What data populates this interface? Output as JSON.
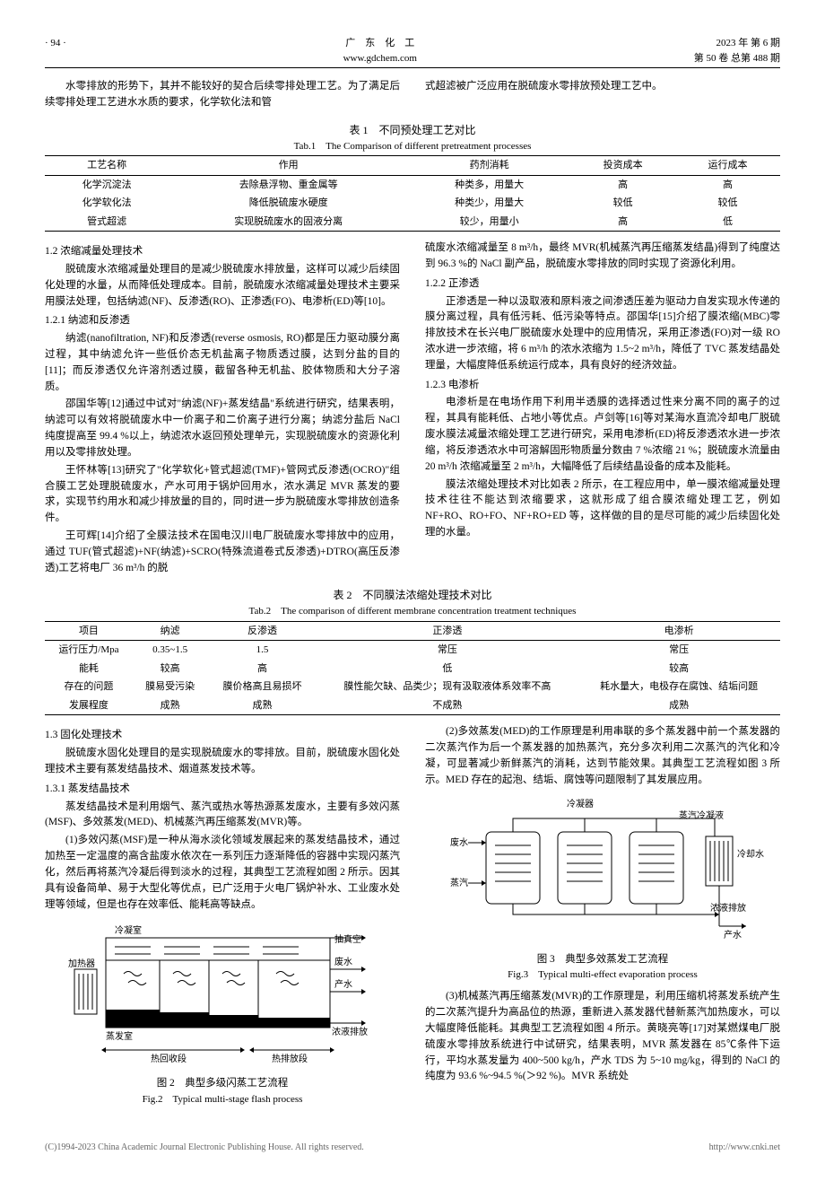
{
  "header": {
    "page_num": "· 94 ·",
    "journal_cn": "广　东　化　工",
    "journal_url": "www.gdchem.com",
    "year_issue": "2023 年 第 6 期",
    "vol_issue": "第 50 卷 总第 488 期"
  },
  "intro": {
    "left": "水零排放的形势下，其并不能较好的契合后续零排处理工艺。为了满足后续零排处理工艺进水水质的要求，化学软化法和管",
    "right": "式超滤被广泛应用在脱硫废水零排放预处理工艺中。"
  },
  "table1": {
    "caption_cn": "表 1　不同预处理工艺对比",
    "caption_en": "Tab.1　The Comparison of different pretreatment processes",
    "headers": [
      "工艺名称",
      "作用",
      "药剂消耗",
      "投资成本",
      "运行成本"
    ],
    "rows": [
      [
        "化学沉淀法",
        "去除悬浮物、重金属等",
        "种类多，用量大",
        "高",
        "高"
      ],
      [
        "化学软化法",
        "降低脱硫废水硬度",
        "种类少，用量大",
        "较低",
        "较低"
      ],
      [
        "管式超滤",
        "实现脱硫废水的固液分离",
        "较少，用量小",
        "高",
        "低"
      ]
    ]
  },
  "section12": {
    "title": "1.2 浓缩减量处理技术",
    "p1": "脱硫废水浓缩减量处理目的是减少脱硫废水排放量，这样可以减少后续固化处理的水量，从而降低处理成本。目前，脱硫废水浓缩减量处理技术主要采用膜法处理，包括纳滤(NF)、反渗透(RO)、正渗透(FO)、电渗析(ED)等[10]。",
    "s121_title": "1.2.1 纳滤和反渗透",
    "s121_p1": "纳滤(nanofiltration, NF)和反渗透(reverse osmosis, RO)都是压力驱动膜分离过程，其中纳滤允许一些低价态无机盐离子物质透过膜，达到分盐的目的[11]；而反渗透仅允许溶剂透过膜，截留各种无机盐、胶体物质和大分子溶质。",
    "s121_p2": "邵国华等[12]通过中试对\"纳滤(NF)+蒸发结晶\"系统进行研究，结果表明，纳滤可以有效将脱硫废水中一价离子和二价离子进行分离；纳滤分盐后 NaCl 纯度提高至 99.4 %以上，纳滤浓水返回预处理单元，实现脱硫废水的资源化利用以及零排放处理。",
    "s121_p3": "王怀林等[13]研究了\"化学软化+管式超滤(TMF)+管网式反渗透(OCRO)\"组合膜工艺处理脱硫废水，产水可用于锅炉回用水，浓水满足 MVR 蒸发的要求，实现节约用水和减少排放量的目的，同时进一步为脱硫废水零排放创造条件。",
    "s121_p4": "王可辉[14]介绍了全膜法技术在国电汉川电厂脱硫废水零排放中的应用，通过 TUF(管式超滤)+NF(纳滤)+SCRO(特殊流道卷式反渗透)+DTRO(高压反渗透)工艺将电厂 36 m³/h 的脱",
    "right_p1": "硫废水浓缩减量至 8 m³/h，最终 MVR(机械蒸汽再压缩蒸发结晶)得到了纯度达到 96.3 %的 NaCl 副产品，脱硫废水零排放的同时实现了资源化利用。",
    "s122_title": "1.2.2 正渗透",
    "s122_p1": "正渗透是一种以汲取液和原料液之间渗透压差为驱动力自发实现水传递的膜分离过程，具有低污耗、低污染等特点。邵国华[15]介绍了膜浓缩(MBC)零排放技术在长兴电厂脱硫废水处理中的应用情况，采用正渗透(FO)对一级 RO 浓水进一步浓缩，将 6 m³/h 的浓水浓缩为 1.5~2 m³/h，降低了 TVC 蒸发结晶处理量，大幅度降低系统运行成本，具有良好的经济效益。",
    "s123_title": "1.2.3 电渗析",
    "s123_p1": "电渗析是在电场作用下利用半透膜的选择透过性来分离不同的离子的过程，其具有能耗低、占地小等优点。卢剑等[16]等对某海水直流冷却电厂脱硫废水膜法减量浓缩处理工艺进行研究，采用电渗析(ED)将反渗透浓水进一步浓缩，将反渗透浓水中可溶解固形物质量分数由 7 %浓缩 21 %；脱硫废水流量由 20 m³/h 浓缩减量至 2 m³/h，大幅降低了后续结晶设备的成本及能耗。",
    "s123_p2": "膜法浓缩处理技术对比如表 2 所示，在工程应用中，单一膜浓缩减量处理技术往往不能达到浓缩要求，这就形成了组合膜浓缩处理工艺，例如 NF+RO、RO+FO、NF+RO+ED 等，这样做的目的是尽可能的减少后续固化处理的水量。"
  },
  "table2": {
    "caption_cn": "表 2　不同膜法浓缩处理技术对比",
    "caption_en": "Tab.2　The comparison of different membrane concentration treatment techniques",
    "headers": [
      "项目",
      "纳滤",
      "反渗透",
      "正渗透",
      "电渗析"
    ],
    "rows": [
      [
        "运行压力/Mpa",
        "0.35~1.5",
        "1.5",
        "常压",
        "常压"
      ],
      [
        "能耗",
        "较高",
        "高",
        "低",
        "较高"
      ],
      [
        "存在的问题",
        "膜易受污染",
        "膜价格高且易损坏",
        "膜性能欠缺、品类少；现有汲取液体系效率不高",
        "耗水量大，电极存在腐蚀、结垢问题"
      ],
      [
        "发展程度",
        "成熟",
        "成熟",
        "不成熟",
        "成熟"
      ]
    ]
  },
  "section13": {
    "title": "1.3 固化处理技术",
    "p1": "脱硫废水固化处理目的是实现脱硫废水的零排放。目前，脱硫废水固化处理技术主要有蒸发结晶技术、烟道蒸发技术等。",
    "s131_title": "1.3.1 蒸发结晶技术",
    "s131_p1": "蒸发结晶技术是利用烟气、蒸汽或热水等热源蒸发废水，主要有多效闪蒸(MSF)、多效蒸发(MED)、机械蒸汽再压缩蒸发(MVR)等。",
    "s131_p2": "(1)多效闪蒸(MSF)是一种从海水淡化领域发展起来的蒸发结晶技术，通过加热至一定温度的高含盐废水依次在一系列压力逐渐降低的容器中实现闪蒸汽化，然后再将蒸汽冷凝后得到淡水的过程，其典型工艺流程如图 2 所示。因其具有设备简单、易于大型化等优点，已广泛用于火电厂锅炉补水、工业废水处理等领域，但是也存在效率低、能耗高等缺点。",
    "right_p1": "(2)多效蒸发(MED)的工作原理是利用串联的多个蒸发器中前一个蒸发器的二次蒸汽作为后一个蒸发器的加热蒸汽，充分多次利用二次蒸汽的汽化和冷凝，可显著减少新鲜蒸汽的消耗，达到节能效果。其典型工艺流程如图 3 所示。MED 存在的起泡、结垢、腐蚀等问题限制了其发展应用。",
    "right_p2": "(3)机械蒸汽再压缩蒸发(MVR)的工作原理是，利用压缩机将蒸发系统产生的二次蒸汽提升为高品位的热源，重新进入蒸发器代替新蒸汽加热废水，可以大幅度降低能耗。其典型工艺流程如图 4 所示。黄晓亮等[17]对某燃煤电厂脱硫废水零排放系统进行中试研究，结果表明，MVR 蒸发器在 85℃条件下运行，平均水蒸发量为 400~500 kg/h，产水 TDS 为 5~10 mg/kg，得到的 NaCl 的纯度为 93.6 %~94.5 %(＞92 %)。MVR 系统处"
  },
  "fig2": {
    "caption_cn": "图 2　典型多级闪蒸工艺流程",
    "caption_en": "Fig.2　Typical multi-stage flash process",
    "labels": {
      "condenser": "冷凝室",
      "vacuum": "抽真空",
      "waste": "废水",
      "heater": "加热器",
      "product": "产水",
      "evap": "蒸发室",
      "brine": "浓液排放",
      "recovery": "热回收段",
      "reject": "热排放段"
    },
    "colors": {
      "line": "#000000",
      "fill": "#000000",
      "bg": "#ffffff"
    }
  },
  "fig3": {
    "caption_cn": "图 3　典型多效蒸发工艺流程",
    "caption_en": "Fig.3　Typical multi-effect evaporation process",
    "labels": {
      "condenser": "冷凝器",
      "condensate": "蒸汽冷凝液",
      "waste": "废水",
      "cooling": "冷却水",
      "steam": "蒸汽",
      "brine": "浓液排放",
      "product": "产水"
    },
    "colors": {
      "line": "#000000",
      "bg": "#ffffff"
    }
  },
  "footer": {
    "left": "(C)1994-2023 China Academic Journal Electronic Publishing House. All rights reserved.",
    "right": "http://www.cnki.net"
  }
}
